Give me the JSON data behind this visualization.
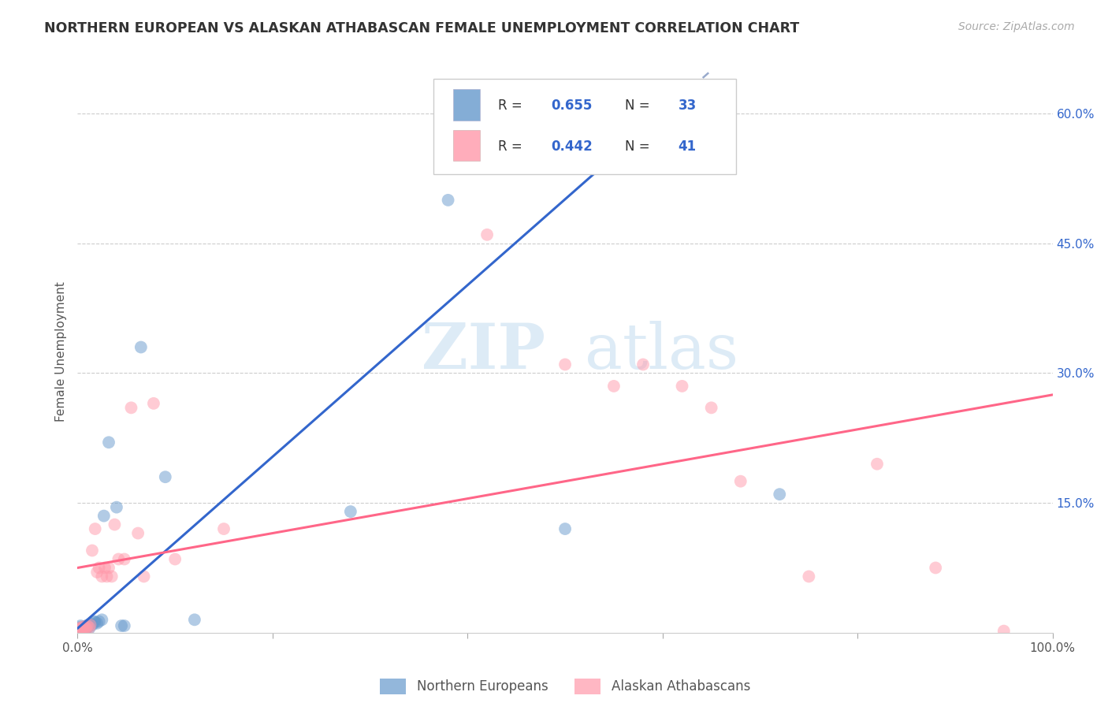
{
  "title": "NORTHERN EUROPEAN VS ALASKAN ATHABASCAN FEMALE UNEMPLOYMENT CORRELATION CHART",
  "source": "Source: ZipAtlas.com",
  "ylabel": "Female Unemployment",
  "xlim": [
    0,
    1.0
  ],
  "ylim": [
    0,
    0.65
  ],
  "xticks": [
    0.0,
    0.2,
    0.4,
    0.6,
    0.8,
    1.0
  ],
  "xticklabels": [
    "0.0%",
    "",
    "",
    "",
    "",
    "100.0%"
  ],
  "yticks_right": [
    0.0,
    0.15,
    0.3,
    0.45,
    0.6
  ],
  "yticklabels_right": [
    "",
    "15.0%",
    "30.0%",
    "45.0%",
    "60.0%"
  ],
  "blue_color": "#6699CC",
  "pink_color": "#FF99AA",
  "blue_scatter": [
    [
      0.001,
      0.002
    ],
    [
      0.002,
      0.004
    ],
    [
      0.002,
      0.006
    ],
    [
      0.003,
      0.003
    ],
    [
      0.003,
      0.008
    ],
    [
      0.004,
      0.005
    ],
    [
      0.005,
      0.004
    ],
    [
      0.006,
      0.006
    ],
    [
      0.007,
      0.007
    ],
    [
      0.008,
      0.004
    ],
    [
      0.009,
      0.008
    ],
    [
      0.01,
      0.006
    ],
    [
      0.011,
      0.009
    ],
    [
      0.012,
      0.005
    ],
    [
      0.013,
      0.01
    ],
    [
      0.015,
      0.009
    ],
    [
      0.017,
      0.013
    ],
    [
      0.018,
      0.012
    ],
    [
      0.02,
      0.011
    ],
    [
      0.022,
      0.013
    ],
    [
      0.025,
      0.015
    ],
    [
      0.027,
      0.135
    ],
    [
      0.032,
      0.22
    ],
    [
      0.04,
      0.145
    ],
    [
      0.045,
      0.008
    ],
    [
      0.048,
      0.008
    ],
    [
      0.065,
      0.33
    ],
    [
      0.09,
      0.18
    ],
    [
      0.12,
      0.015
    ],
    [
      0.28,
      0.14
    ],
    [
      0.38,
      0.5
    ],
    [
      0.5,
      0.12
    ],
    [
      0.72,
      0.16
    ]
  ],
  "pink_scatter": [
    [
      0.001,
      0.003
    ],
    [
      0.002,
      0.005
    ],
    [
      0.003,
      0.004
    ],
    [
      0.004,
      0.006
    ],
    [
      0.005,
      0.005
    ],
    [
      0.006,
      0.007
    ],
    [
      0.007,
      0.004
    ],
    [
      0.008,
      0.006
    ],
    [
      0.009,
      0.005
    ],
    [
      0.01,
      0.008
    ],
    [
      0.012,
      0.006
    ],
    [
      0.013,
      0.009
    ],
    [
      0.015,
      0.095
    ],
    [
      0.018,
      0.12
    ],
    [
      0.02,
      0.07
    ],
    [
      0.022,
      0.075
    ],
    [
      0.025,
      0.065
    ],
    [
      0.028,
      0.075
    ],
    [
      0.03,
      0.065
    ],
    [
      0.032,
      0.075
    ],
    [
      0.035,
      0.065
    ],
    [
      0.038,
      0.125
    ],
    [
      0.042,
      0.085
    ],
    [
      0.048,
      0.085
    ],
    [
      0.055,
      0.26
    ],
    [
      0.062,
      0.115
    ],
    [
      0.068,
      0.065
    ],
    [
      0.078,
      0.265
    ],
    [
      0.1,
      0.085
    ],
    [
      0.15,
      0.12
    ],
    [
      0.42,
      0.46
    ],
    [
      0.5,
      0.31
    ],
    [
      0.55,
      0.285
    ],
    [
      0.58,
      0.31
    ],
    [
      0.62,
      0.285
    ],
    [
      0.65,
      0.26
    ],
    [
      0.68,
      0.175
    ],
    [
      0.75,
      0.065
    ],
    [
      0.82,
      0.195
    ],
    [
      0.88,
      0.075
    ],
    [
      0.95,
      0.002
    ]
  ],
  "blue_line_solid": [
    [
      0.0,
      0.005
    ],
    [
      0.62,
      0.62
    ]
  ],
  "blue_line_dash": [
    [
      0.62,
      0.62
    ],
    [
      0.9,
      0.9
    ]
  ],
  "pink_line": [
    [
      0.0,
      0.075
    ],
    [
      1.0,
      0.275
    ]
  ],
  "blue_R": "0.655",
  "blue_N": "33",
  "pink_R": "0.442",
  "pink_N": "41",
  "legend_labels": [
    "Northern Europeans",
    "Alaskan Athabascans"
  ],
  "watermark_zip": "ZIP",
  "watermark_atlas": "atlas",
  "background_color": "#ffffff",
  "grid_color": "#cccccc"
}
